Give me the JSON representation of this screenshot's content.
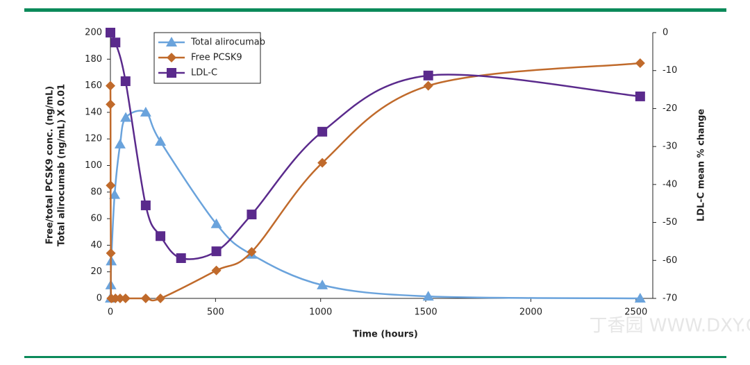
{
  "chart_data": {
    "type": "line",
    "x_label": "Time (hours)",
    "y_label": [
      "Free/total PCSK9 conc. (ng/mL)",
      "Total alirocumab (ng/mL) X 0.01"
    ],
    "y2_label": "LDL-C mean % change",
    "xlim": [
      0,
      2580
    ],
    "xticks": [
      0,
      500,
      1000,
      1500,
      2000,
      2500
    ],
    "ylim": [
      0,
      200
    ],
    "yticks": [
      0,
      20,
      40,
      60,
      80,
      100,
      120,
      140,
      160,
      180,
      200
    ],
    "y2lim": [
      -70,
      0
    ],
    "y2ticks": [
      0,
      -10,
      -20,
      -30,
      -40,
      -50,
      -60,
      -70
    ],
    "series": [
      {
        "name": "Total alirocumab",
        "color": "#6aa3dc",
        "marker": "triangle",
        "x": [
          0,
          2,
          4,
          20,
          46,
          73,
          168,
          238,
          504,
          672,
          1008,
          1512,
          2520
        ],
        "values": [
          0,
          10,
          28,
          78,
          116,
          136,
          140,
          118,
          56,
          33,
          10,
          1.5,
          0
        ]
      },
      {
        "name": "Free PCSK9",
        "color": "#c06a2b",
        "marker": "diamond",
        "x": [
          0,
          0.5,
          1,
          2,
          4,
          24,
          46,
          72,
          168,
          238,
          504,
          672,
          1008,
          1512,
          2520
        ],
        "values": [
          160,
          146,
          85,
          34,
          0,
          0,
          0,
          0,
          0,
          0,
          21,
          35,
          102,
          160,
          177
        ]
      },
      {
        "name": "LDL-C",
        "color": "#5a2a8c",
        "marker": "square",
        "axis": "y2",
        "x": [
          0,
          24,
          72,
          168,
          238,
          336,
          504,
          672,
          1008,
          1512,
          2520
        ],
        "values": [
          0,
          -2.6,
          -12.8,
          -45.5,
          -53.6,
          -59.4,
          -57.6,
          -47.9,
          -26.1,
          -11.3,
          -16.8
        ]
      }
    ],
    "legend": "upper-left",
    "watermark": "丁香园 WWW.DXY.CN"
  }
}
